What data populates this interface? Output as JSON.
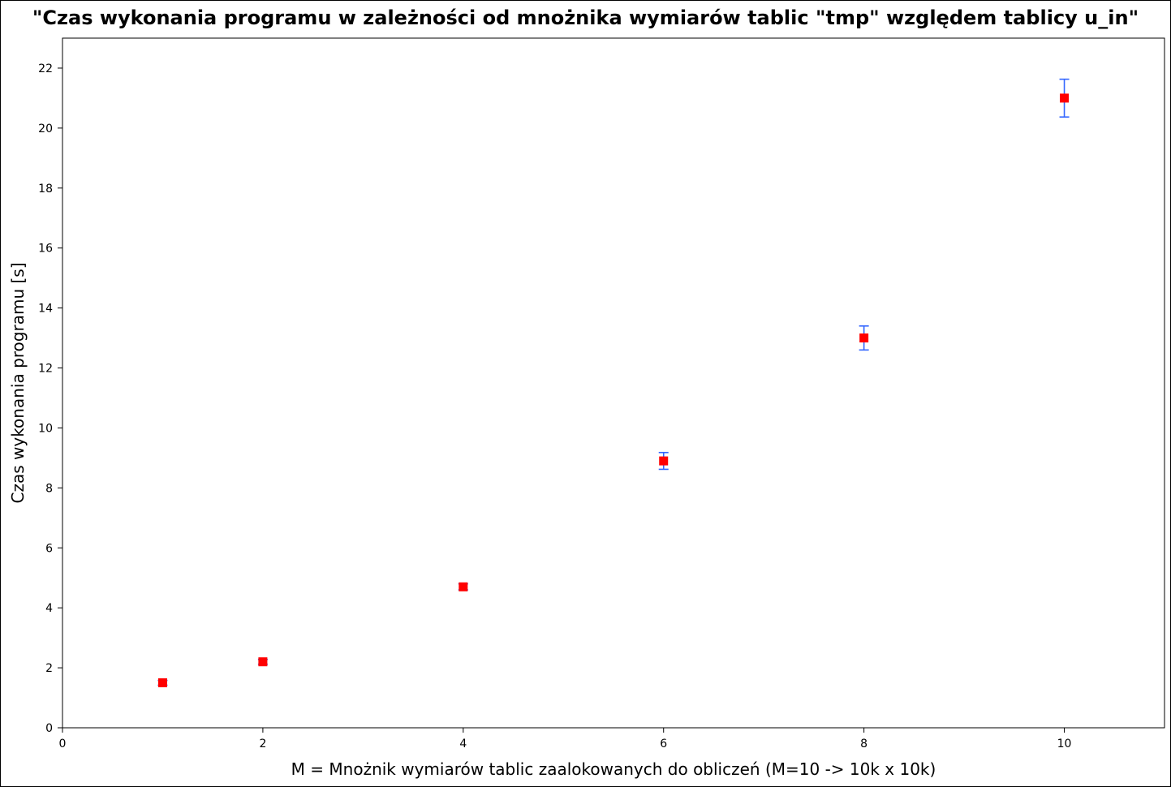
{
  "chart_data": {
    "type": "scatter",
    "title": "\"Czas wykonania programu w zależności od mnożnika wymiarów tablic \"tmp\" względem tablicy u_in\"",
    "xlabel": "M = Mnożnik wymiarów tablic zaalokowanych do obliczeń (M=10 -> 10k x 10k)",
    "ylabel": "Czas wykonania programu [s]",
    "xlim": [
      0,
      11
    ],
    "ylim": [
      0,
      23
    ],
    "x_ticks": [
      0,
      2,
      4,
      6,
      8,
      10
    ],
    "y_ticks": [
      0,
      2,
      4,
      6,
      8,
      10,
      12,
      14,
      16,
      18,
      20,
      22
    ],
    "grid": false,
    "legend": "none",
    "series": [
      {
        "x": [
          1,
          2,
          4,
          6,
          8,
          10
        ],
        "y": [
          1.5,
          2.2,
          4.7,
          8.9,
          13.0,
          21.0
        ],
        "error": [
          0.08,
          0.08,
          0.1,
          0.28,
          0.4,
          0.63
        ],
        "marker_color": "#ff0000",
        "error_color": "#3366ff"
      }
    ]
  }
}
